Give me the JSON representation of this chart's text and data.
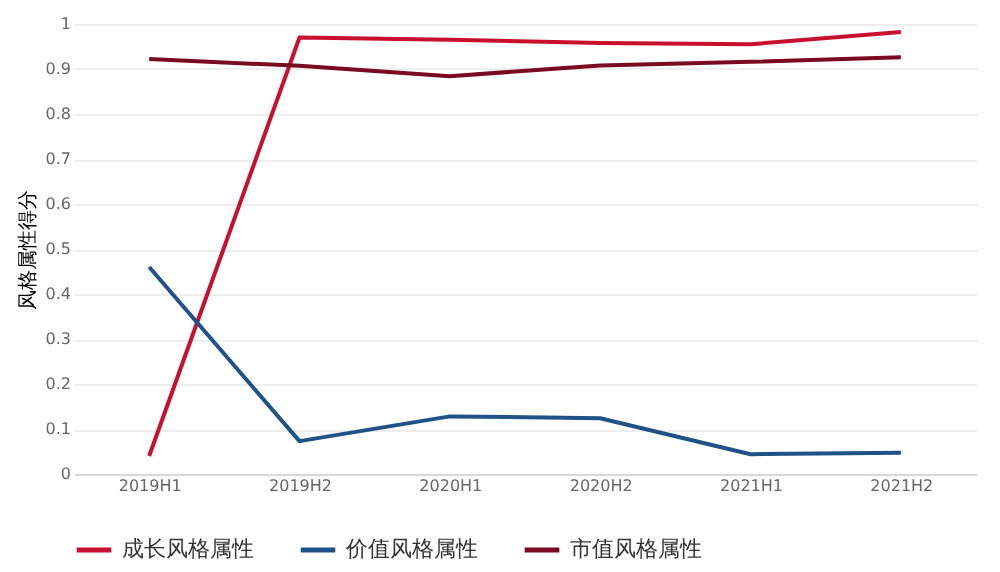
{
  "chart_data": {
    "type": "line",
    "ylabel": "风格属性得分",
    "categories": [
      "2019H1",
      "2019H2",
      "2020H1",
      "2020H2",
      "2021H1",
      "2021H2"
    ],
    "series": [
      {
        "name": "成长风格属性",
        "color": "#c8102e",
        "values": [
          0.04,
          0.97,
          0.965,
          0.958,
          0.955,
          0.982
        ]
      },
      {
        "name": "价值风格属性",
        "color": "#1f5287",
        "values": [
          0.46,
          0.073,
          0.128,
          0.124,
          0.044,
          0.047
        ]
      },
      {
        "name": "市值风格属性",
        "color": "#7a0a22",
        "values": [
          0.922,
          0.907,
          0.884,
          0.908,
          0.916,
          0.926
        ]
      }
    ],
    "ylim": [
      0,
      1
    ],
    "yticks": [
      0,
      0.1,
      0.2,
      0.3,
      0.4,
      0.5,
      0.6,
      0.7,
      0.8,
      0.9,
      1
    ],
    "grid": "y",
    "legend": "bottom"
  }
}
